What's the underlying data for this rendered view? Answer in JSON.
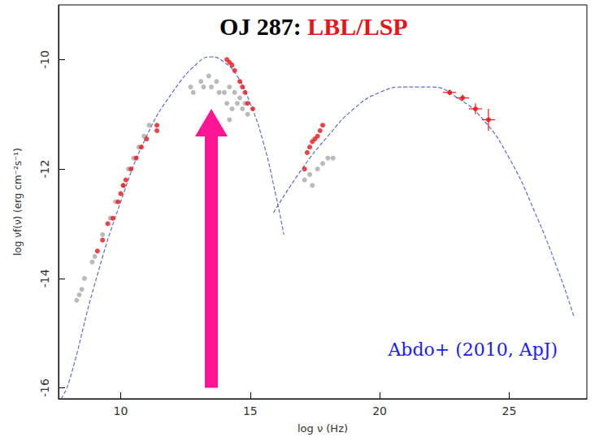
{
  "chart_data": {
    "type": "scatter",
    "title": "OJ 287: LBL/LSP",
    "x_label": "log ν (Hz)",
    "y_label": "log νf(ν) (erg cm⁻²s⁻¹)",
    "xlim": [
      7.6,
      28
    ],
    "ylim": [
      -16.2,
      -9.0
    ],
    "xticks": [
      10,
      15,
      20,
      25
    ],
    "yticks": [
      -16,
      -14,
      -12,
      -10
    ],
    "grid": false,
    "series": [
      {
        "type": "scatter",
        "marker": "circle",
        "color": "#a9a9a9",
        "x": [
          8.3,
          8.4,
          8.5,
          8.6,
          8.9,
          9.0,
          9.3,
          9.6,
          9.8,
          10.1,
          10.3,
          10.5,
          10.7,
          10.9,
          11.1,
          12.7,
          12.8,
          13.1,
          13.2,
          13.4,
          13.5,
          13.7,
          13.8,
          14.0,
          14.1,
          14.2,
          14.3,
          14.4,
          14.5,
          14.6,
          14.7,
          14.8,
          14.9,
          14.2,
          17.1,
          17.3,
          17.4,
          17.6,
          17.8,
          18.0,
          18.2
        ],
        "y": [
          -14.4,
          -14.3,
          -14.2,
          -14.0,
          -13.7,
          -13.6,
          -13.2,
          -12.9,
          -12.6,
          -12.3,
          -12.0,
          -11.8,
          -11.6,
          -11.4,
          -11.2,
          -10.5,
          -10.6,
          -10.4,
          -10.5,
          -10.3,
          -10.5,
          -10.4,
          -10.6,
          -10.6,
          -10.8,
          -10.5,
          -10.9,
          -10.6,
          -10.8,
          -10.7,
          -10.9,
          -10.8,
          -11.0,
          -11.1,
          -12.2,
          -12.1,
          -12.3,
          -12.0,
          -11.9,
          -11.8,
          -11.8
        ]
      },
      {
        "type": "scatter",
        "marker": "circle",
        "color": "#e8141a",
        "x": [
          9.1,
          9.3,
          9.5,
          9.7,
          9.9,
          10.0,
          10.1,
          10.2,
          10.4,
          10.6,
          10.8,
          11.0,
          11.4,
          11.4,
          14.1,
          14.2,
          14.3,
          14.4,
          14.6,
          14.7,
          14.8,
          14.9,
          15.1,
          17.1,
          17.2,
          17.3,
          17.4,
          17.5,
          17.6,
          17.7,
          17.8
        ],
        "y": [
          -13.5,
          -13.3,
          -13.0,
          -12.9,
          -12.6,
          -12.45,
          -12.3,
          -12.2,
          -12.0,
          -11.8,
          -11.6,
          -11.45,
          -11.2,
          -11.3,
          -10.0,
          -10.05,
          -10.1,
          -10.2,
          -10.4,
          -10.5,
          -10.6,
          -10.8,
          -10.9,
          -12.0,
          -11.7,
          -11.6,
          -11.5,
          -11.45,
          -11.4,
          -11.3,
          -11.2
        ]
      },
      {
        "type": "scatter",
        "marker": "circle",
        "color": "#e8141a",
        "x": [
          22.7,
          23.2,
          23.7,
          24.2
        ],
        "y": [
          -10.6,
          -10.7,
          -10.9,
          -11.1
        ],
        "yerr": [
          0.05,
          0.06,
          0.1,
          0.2
        ]
      },
      {
        "type": "line",
        "line_style": "dashed",
        "color": "#5b6bd8",
        "x": [
          7.7,
          8,
          9,
          10,
          11,
          12,
          13,
          13.5,
          14,
          14.5,
          15,
          15.5,
          16,
          16.3
        ],
        "y": [
          -16.2,
          -15.9,
          -14.1,
          -12.6,
          -11.4,
          -10.6,
          -10.05,
          -9.95,
          -10.05,
          -10.3,
          -10.8,
          -11.5,
          -12.5,
          -13.2
        ]
      },
      {
        "type": "line",
        "line_style": "dashed",
        "color": "#5b6bd8",
        "x": [
          15.9,
          17,
          18,
          19,
          20,
          21,
          21.5,
          22,
          23,
          24,
          25,
          26,
          27,
          27.5
        ],
        "y": [
          -12.8,
          -12.0,
          -11.4,
          -10.9,
          -10.6,
          -10.5,
          -10.5,
          -10.5,
          -10.7,
          -11.1,
          -11.8,
          -12.8,
          -14.0,
          -14.7
        ]
      }
    ],
    "arrow": {
      "x": 13.5,
      "y": [
        -16.0,
        -10.9
      ],
      "color": "#ff1493"
    },
    "annotations": [
      {
        "text": "Abdo+ (2010, ApJ)",
        "x": 23.6,
        "y": -15.3,
        "color": "#1a1aff"
      }
    ]
  }
}
